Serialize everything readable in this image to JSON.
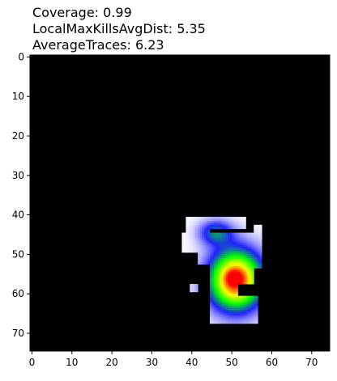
{
  "titles": {
    "line1": "Coverage: 0.99",
    "line2": "LocalMaxKillsAvgDist: 5.35",
    "line3": "AverageTraces: 6.23"
  },
  "chart_data": {
    "type": "heatmap",
    "title": "",
    "xlabel": "",
    "ylabel": "",
    "xlim": [
      -0.5,
      74.5
    ],
    "ylim": [
      74.5,
      -0.5
    ],
    "y_inverted": true,
    "x_ticks": [
      0,
      10,
      20,
      30,
      40,
      50,
      60,
      70
    ],
    "y_ticks": [
      0,
      10,
      20,
      30,
      40,
      50,
      60,
      70
    ],
    "grid": false,
    "legend": "none",
    "background_color": "#000000",
    "colormap": [
      "#ffffff",
      "#2020ff",
      "#00ff00",
      "#ffff00",
      "#ff0000"
    ],
    "white_region": [
      {
        "x": [
          38.5,
          44.5
        ],
        "y": [
          40.5,
          44.5
        ]
      },
      {
        "x": [
          44.5,
          53.5
        ],
        "y": [
          40.5,
          43.5
        ]
      },
      {
        "x": [
          37.5,
          56.5
        ],
        "y": [
          44.5,
          49.5
        ]
      },
      {
        "x": [
          41.5,
          57.5
        ],
        "y": [
          49.5,
          52.5
        ]
      },
      {
        "x": [
          55.5,
          57.5
        ],
        "y": [
          42.5,
          57.5
        ]
      },
      {
        "x": [
          44.5,
          57.5
        ],
        "y": [
          52.5,
          67.5
        ]
      },
      {
        "x": [
          39.5,
          41.5
        ],
        "y": [
          57.5,
          59.5
        ]
      }
    ],
    "blocked_region": [
      {
        "x": [
          53.5,
          55.5
        ],
        "y": [
          40.5,
          44.5
        ]
      },
      {
        "x": [
          55.5,
          58.5
        ],
        "y": [
          53.5,
          57.5
        ]
      },
      {
        "x": [
          51.5,
          58.5
        ],
        "y": [
          57.5,
          60.5
        ]
      },
      {
        "x": [
          56.5,
          58.5
        ],
        "y": [
          60.5,
          67.5
        ]
      }
    ],
    "hotspots": [
      {
        "x": 46,
        "y": 44.5,
        "sx": 3.0,
        "sy": 2.2,
        "value": 0.34
      },
      {
        "x": 51,
        "y": 56.5,
        "sx": 4.6,
        "sy": 5.2,
        "value": 1.0
      },
      {
        "x": 50.5,
        "y": 56,
        "sx": 1.3,
        "sy": 1.2,
        "value": 0.2
      }
    ]
  }
}
